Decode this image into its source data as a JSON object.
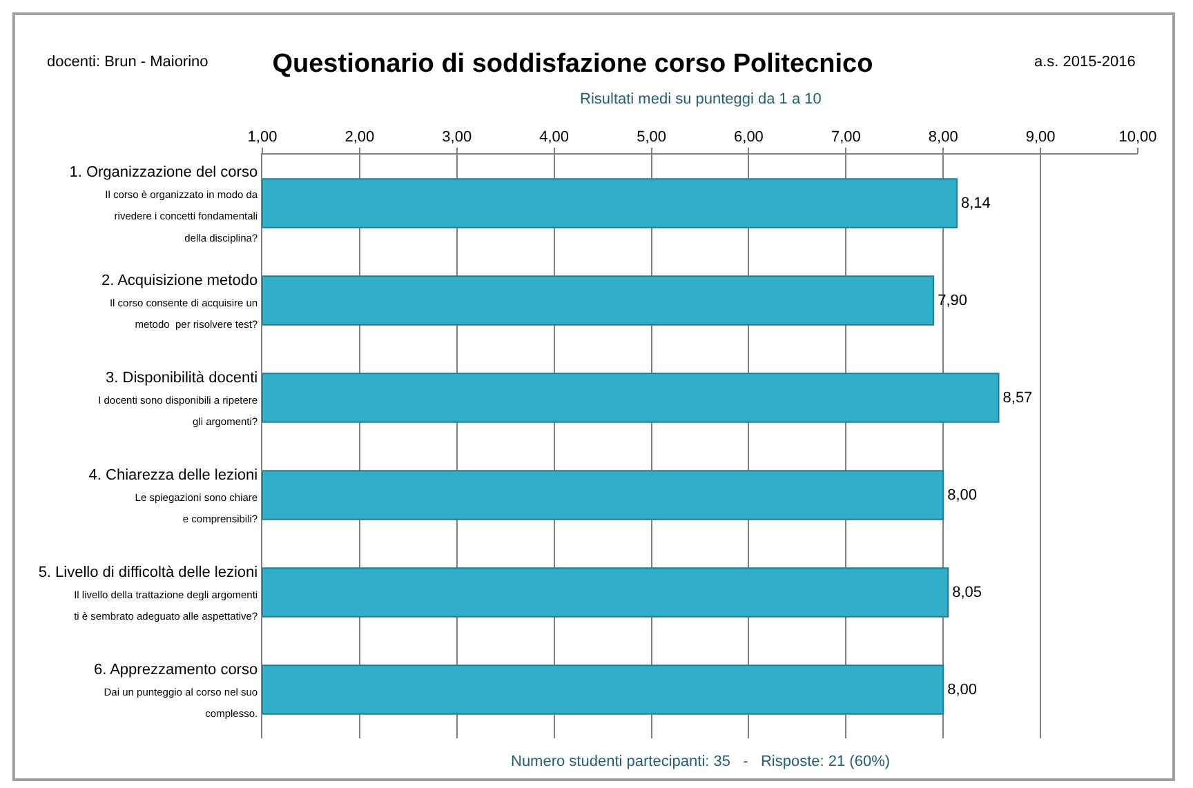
{
  "chart_data": {
    "type": "bar",
    "orientation": "horizontal",
    "title": "Questionario di soddisfazione corso Politecnico",
    "subtitle": "Risultati medi su punteggi da 1 a 10",
    "annotations": [
      "docenti: Brun - Maiorino",
      "a.s. 2015-2016",
      "Numero studenti partecipanti: 35   -   Risposte: 21 (60%)"
    ],
    "categories": [
      "1. Organizzazione del corso\nIl corso è organizzato in modo da\nrivedere i concetti fondamentali\ndella disciplina?",
      "2. Acquisizione metodo\nIl corso consente di acquisire un\nmetodo  per risolvere test?",
      "3. Disponibilità docenti\nI docenti sono disponibili a ripetere\ngli argomenti?",
      "4. Chiarezza delle lezioni\nLe spiegazioni sono chiare\ne comprensibili?",
      "5. Livello di difficoltà delle lezioni\nIl livello della trattazione degli argomenti\nti è sembrato adeguato alle aspettative?",
      "6. Apprezzamento corso\nDai un punteggio al corso nel suo\ncomplesso."
    ],
    "values": [
      8.14,
      7.9,
      8.57,
      8.0,
      8.05,
      8.0
    ],
    "value_labels": [
      "8,14",
      "7,90",
      "8,57",
      "8,00",
      "8,05",
      "8,00"
    ],
    "color": "#31afc9",
    "xlim": [
      1,
      10
    ],
    "xticks": [
      {
        "value": 1,
        "label": "1,00"
      },
      {
        "value": 2,
        "label": "2,00"
      },
      {
        "value": 3,
        "label": "3,00"
      },
      {
        "value": 4,
        "label": "4,00"
      },
      {
        "value": 5,
        "label": "5,00"
      },
      {
        "value": 6,
        "label": "6,00"
      },
      {
        "value": 7,
        "label": "7,00"
      },
      {
        "value": 8,
        "label": "8,00"
      },
      {
        "value": 9,
        "label": "9,00"
      },
      {
        "value": 10,
        "label": "10,00"
      }
    ],
    "grid": "x"
  }
}
